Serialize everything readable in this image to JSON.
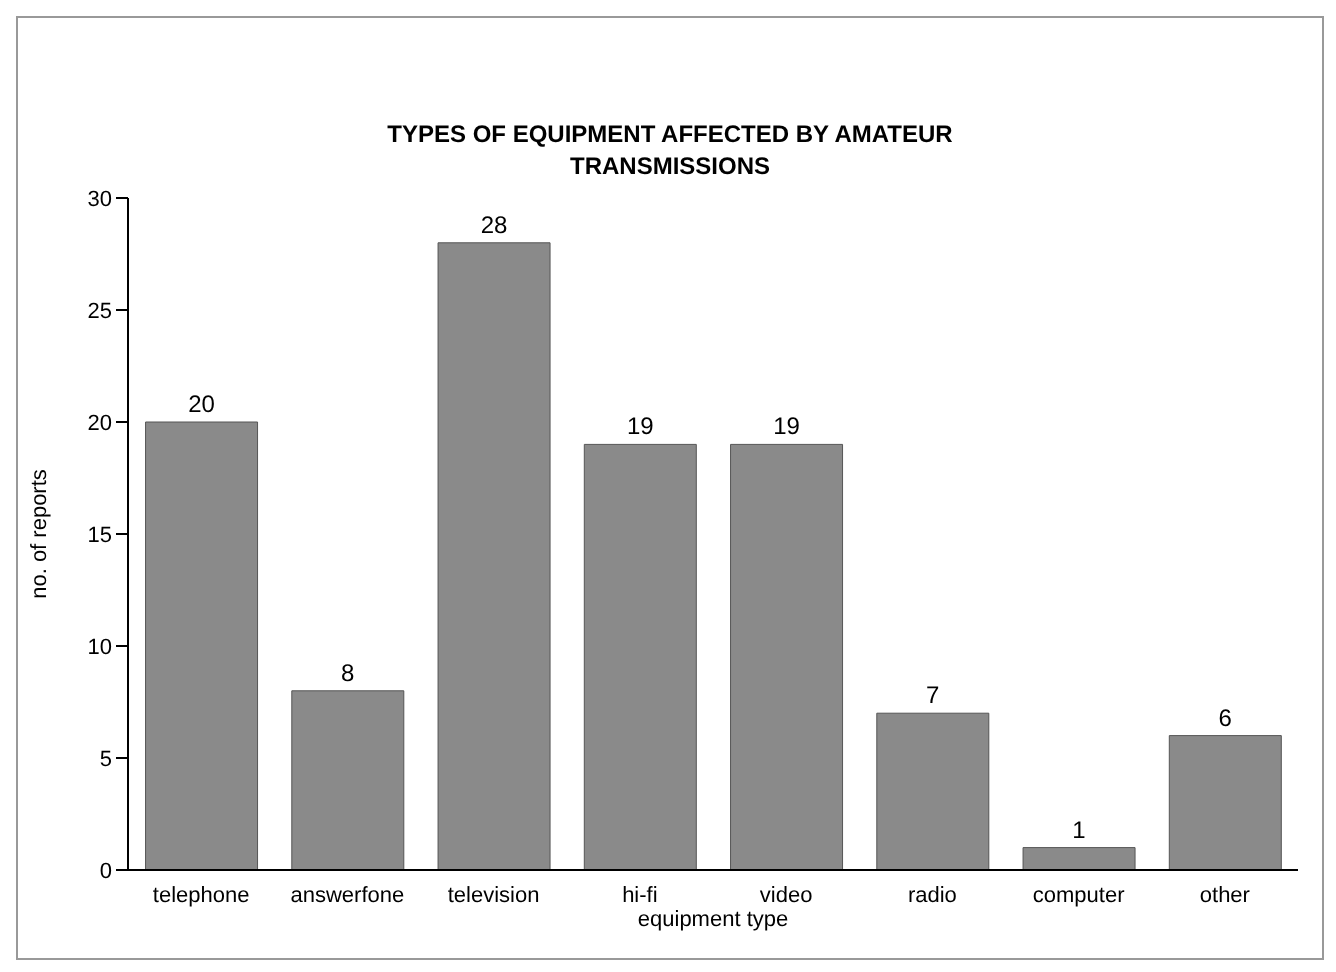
{
  "chart_data": {
    "type": "bar",
    "title": "TYPES OF EQUIPMENT AFFECTED BY AMATEUR TRANSMISSIONS",
    "xlabel": "equipment type",
    "ylabel": "no. of reports",
    "categories": [
      "telephone",
      "answerfone",
      "television",
      "hi-fi",
      "video",
      "radio",
      "computer",
      "other"
    ],
    "values": [
      20,
      8,
      28,
      19,
      19,
      7,
      1,
      6
    ],
    "color": "#8a8a8a",
    "ylim": [
      0,
      30
    ],
    "yticks": [
      0,
      5,
      10,
      15,
      20,
      25,
      30
    ],
    "grid": false,
    "data_labels": true
  }
}
